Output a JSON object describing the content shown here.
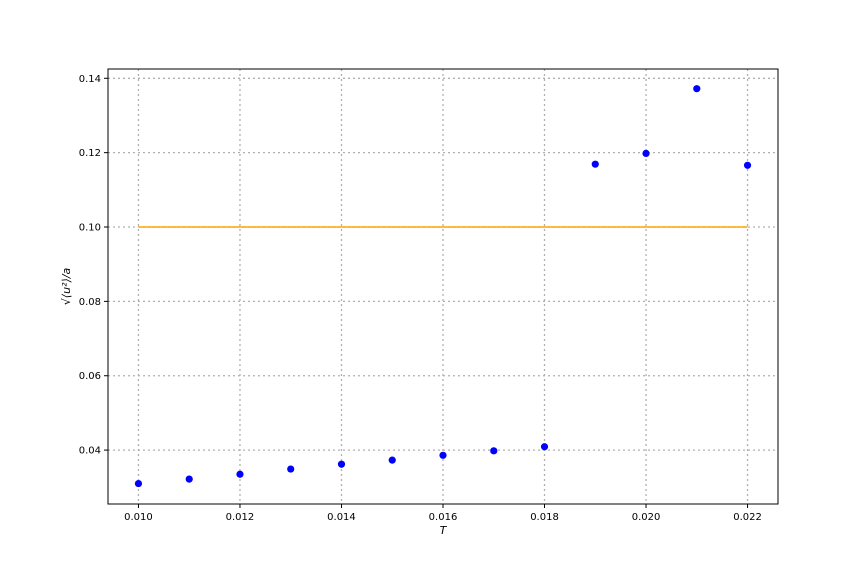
{
  "chart_data": {
    "type": "scatter",
    "title": "",
    "xlabel": "T",
    "ylabel": "√⟨u²⟩/a",
    "xlim": [
      0.0094,
      0.0226
    ],
    "ylim": [
      0.0255,
      0.1425
    ],
    "xticks": [
      "0.010",
      "0.012",
      "0.014",
      "0.016",
      "0.018",
      "0.020",
      "0.022"
    ],
    "yticks": [
      "0.04",
      "0.06",
      "0.08",
      "0.10",
      "0.12",
      "0.14"
    ],
    "grid": true,
    "legend": "none",
    "series": [
      {
        "type": "scatter",
        "color": "#0000ff",
        "x": [
          0.01,
          0.011,
          0.012,
          0.013,
          0.014,
          0.015,
          0.016,
          0.017,
          0.018,
          0.019,
          0.02,
          0.021,
          0.022
        ],
        "y": [
          0.031,
          0.0322,
          0.0335,
          0.0349,
          0.0362,
          0.0373,
          0.0386,
          0.0398,
          0.0409,
          0.1169,
          0.1198,
          0.1372,
          0.1166
        ]
      },
      {
        "type": "line",
        "color": "#ffa500",
        "x": [
          0.01,
          0.022
        ],
        "y": [
          0.1,
          0.1
        ]
      }
    ]
  }
}
